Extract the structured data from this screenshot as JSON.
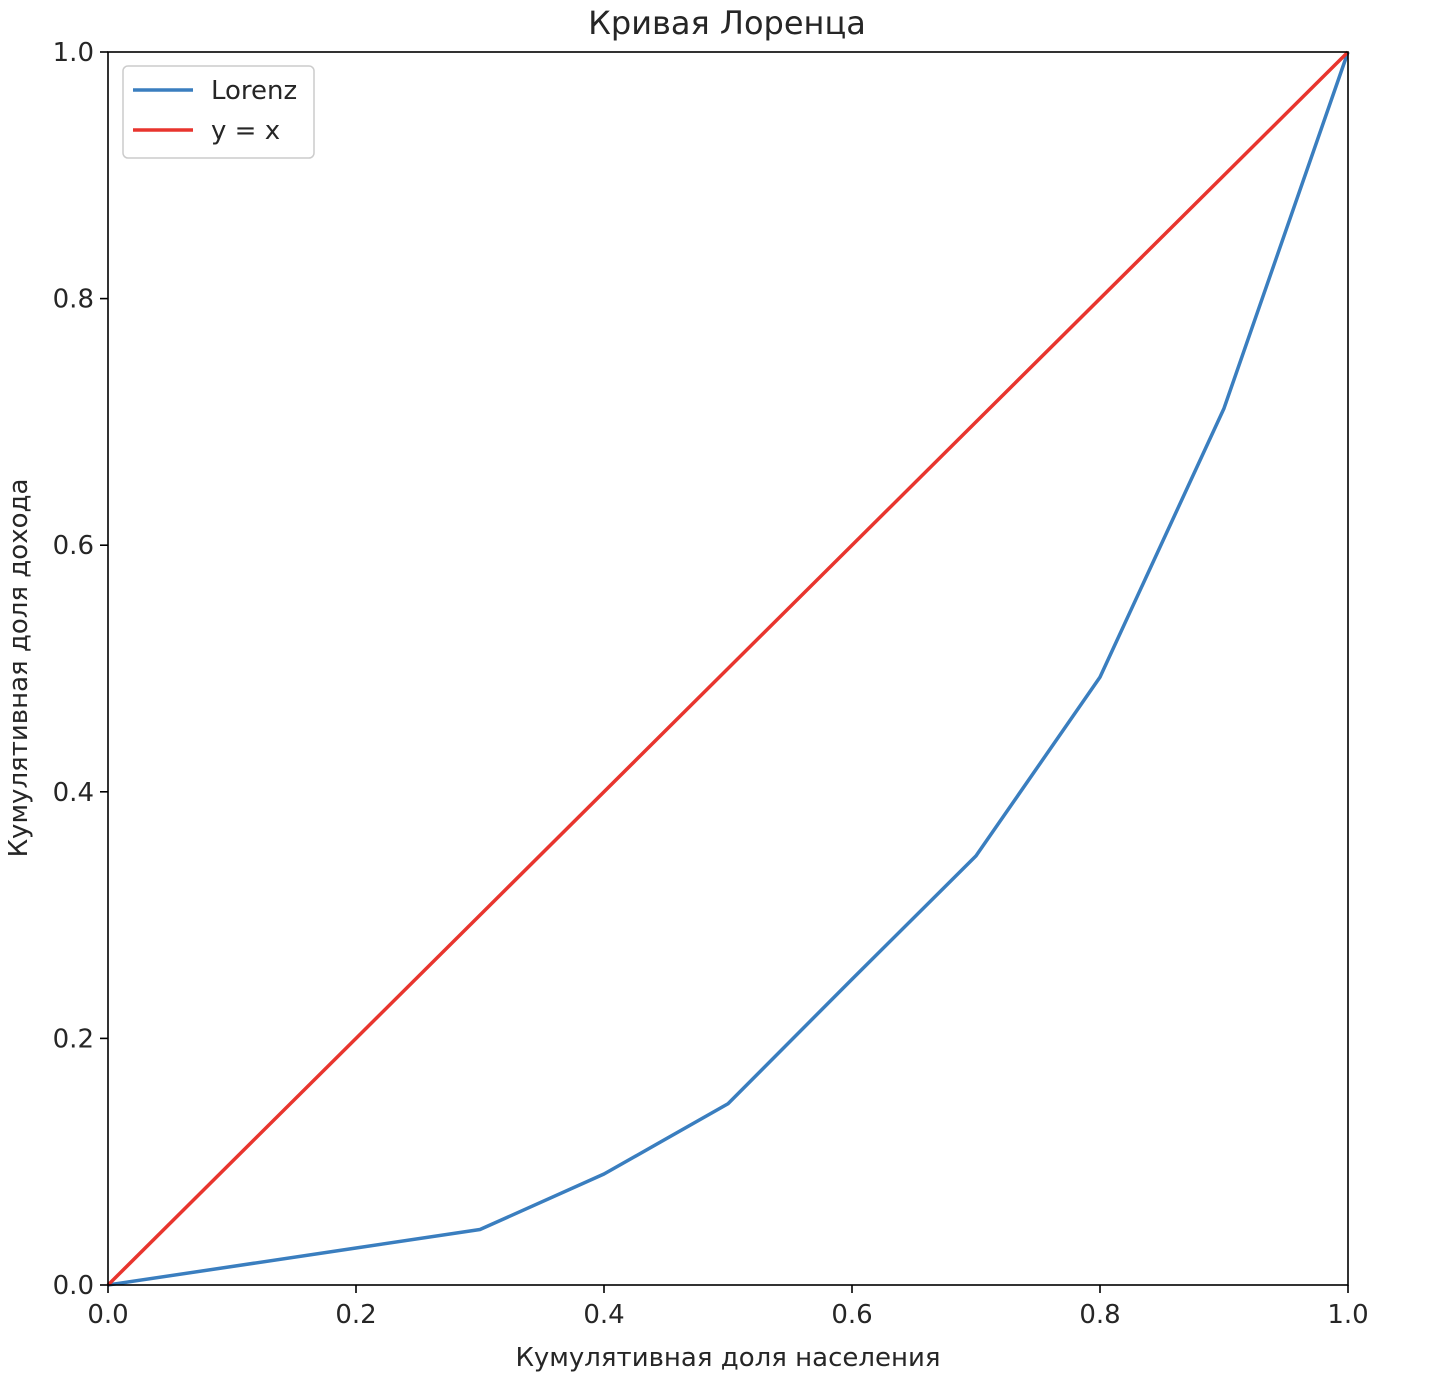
{
  "chart_data": {
    "type": "line",
    "title": "Кривая Лоренца",
    "xlabel": "Кумулятивная доля населения",
    "ylabel": "Кумулятивная доля дохода",
    "xlim": [
      0.0,
      1.0
    ],
    "ylim": [
      0.0,
      1.0
    ],
    "xticks": [
      "0.0",
      "0.2",
      "0.4",
      "0.6",
      "0.8",
      "1.0"
    ],
    "yticks": [
      "0.0",
      "0.2",
      "0.4",
      "0.6",
      "0.8",
      "1.0"
    ],
    "grid": false,
    "legend_position": "top-left",
    "series": [
      {
        "name": "Lorenz",
        "color": "#3a7ebf",
        "x": [
          0.0,
          0.1,
          0.2,
          0.3,
          0.4,
          0.5,
          0.6,
          0.7,
          0.8,
          0.9,
          1.0
        ],
        "y": [
          0.0,
          0.015,
          0.03,
          0.045,
          0.09,
          0.147,
          0.248,
          0.348,
          0.493,
          0.711,
          1.0
        ]
      },
      {
        "name": "y = x",
        "color": "#e8352e",
        "x": [
          0.0,
          1.0
        ],
        "y": [
          0.0,
          1.0
        ]
      }
    ]
  }
}
